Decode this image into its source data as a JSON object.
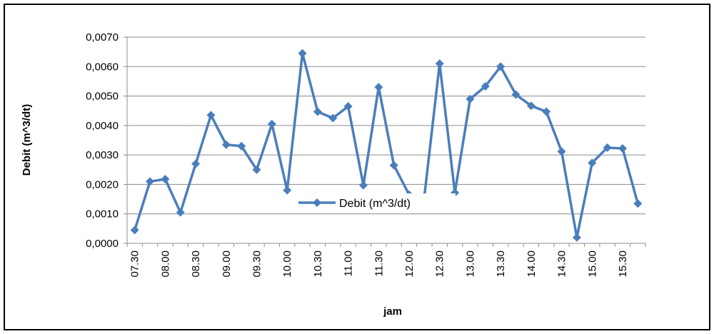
{
  "chart_data": {
    "type": "line",
    "title": "",
    "xlabel": "jam",
    "ylabel": "Debit (m^3/dt)",
    "ylim": [
      0,
      0.007
    ],
    "yticks": [
      "0,0000",
      "0,0010",
      "0,0020",
      "0,0030",
      "0,0040",
      "0,0050",
      "0,0060",
      "0,0070"
    ],
    "grid": true,
    "legend_position": "center",
    "categories": [
      "07.30",
      "07.45",
      "08.00",
      "08.15",
      "08.30",
      "08.45",
      "09.00",
      "09.15",
      "09.30",
      "09.45",
      "10.00",
      "10.15",
      "10.30",
      "10.45",
      "11.00",
      "11.15",
      "11.30",
      "11.45",
      "12.00",
      "12.15",
      "12.30",
      "12.45",
      "13.00",
      "13.15",
      "13.30",
      "13.45",
      "14.00",
      "14.15",
      "14.30",
      "14.45",
      "15.00",
      "15.15",
      "15.30",
      "15.45"
    ],
    "visible_tick_labels": [
      "07.30",
      "08.00",
      "08.30",
      "09.00",
      "09.30",
      "10.00",
      "10.30",
      "11.00",
      "11.30",
      "12.00",
      "12.30",
      "13.00",
      "13.30",
      "14.00",
      "14.30",
      "15.00",
      "15.30"
    ],
    "series": [
      {
        "name": "Debit (m^3/dt)",
        "color": "#4a7ebb",
        "marker": "diamond",
        "values": [
          0.00045,
          0.0021,
          0.00218,
          0.00105,
          0.0027,
          0.00435,
          0.00335,
          0.0033,
          0.0025,
          0.00405,
          0.0018,
          0.00645,
          0.00447,
          0.00425,
          0.00465,
          0.00197,
          0.0053,
          0.00265,
          0.00165,
          0.0016,
          0.0061,
          0.00172,
          0.0049,
          0.00533,
          0.006,
          0.00505,
          0.00467,
          0.00447,
          0.00312,
          0.0002,
          0.00273,
          0.00325,
          0.00322,
          0.00135
        ]
      }
    ]
  }
}
